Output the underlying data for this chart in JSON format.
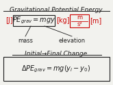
{
  "title": "Gravitational Potential Energy",
  "unit_J": "[J]",
  "formula_main": "$PE_{grav} = mgy$",
  "unit_kg": "[kg]",
  "unit_frac_top": "m",
  "unit_frac_bot": "s²",
  "unit_m": "[m]",
  "label_mass": "mass",
  "label_elevation": "elevation",
  "section2_title": "Initial→Final Change",
  "formula2_text": "$\\Delta PE_{grav} = mg(y_i - y_0)$",
  "red_color": "#cc0000",
  "black_color": "#1a1a1a",
  "bg_color": "#f2f2ee",
  "title_fontsize": 6.5,
  "formula_fontsize": 7.0,
  "small_fontsize": 6.0,
  "label_fontsize": 6.0,
  "section2_title_fontsize": 6.5,
  "formula2_fontsize": 7.0
}
